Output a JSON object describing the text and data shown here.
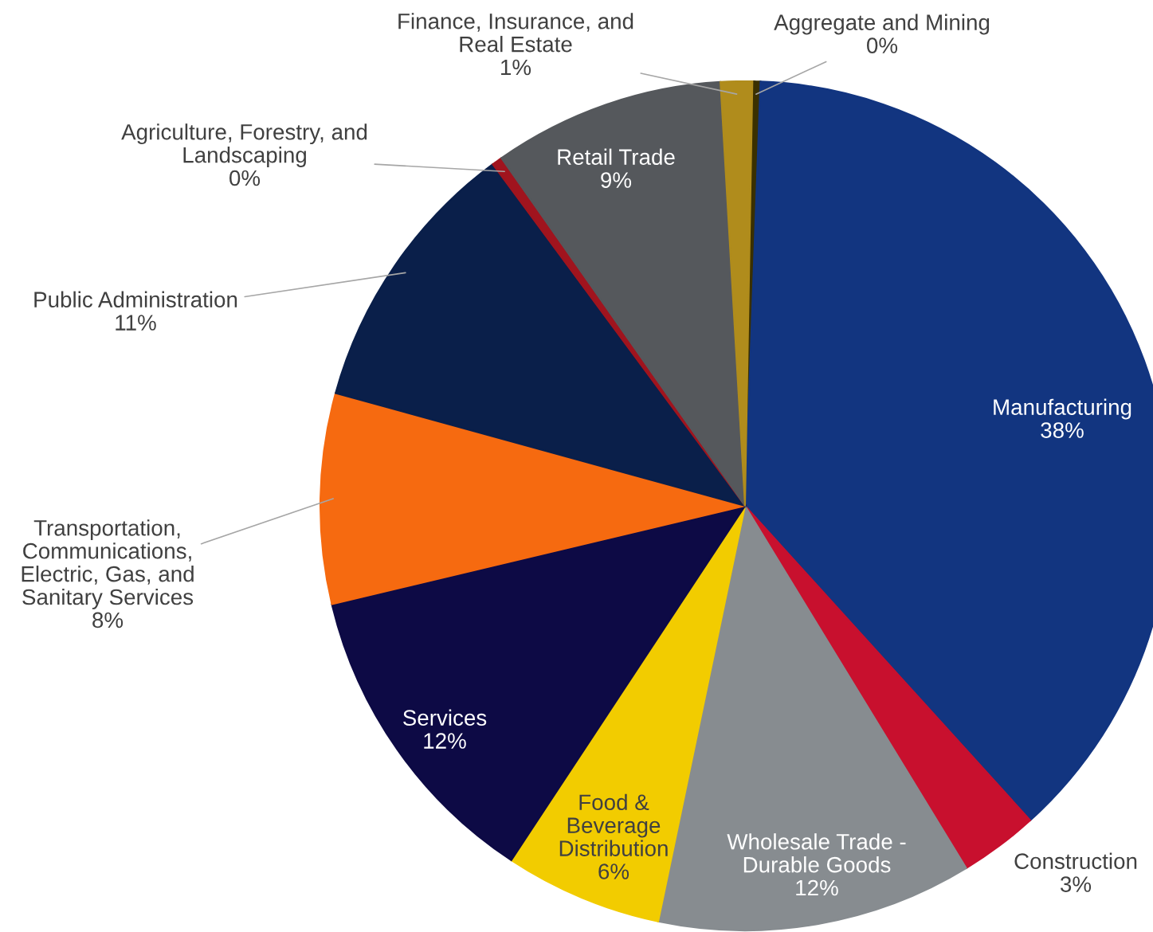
{
  "chart_data": {
    "type": "pie",
    "categories": [
      "Aggregate and Mining",
      "Manufacturing",
      "Construction",
      "Wholesale Trade -\nDurable Goods",
      "Food &\nBeverage\nDistribution",
      "Services",
      "Transportation,\nCommunications,\nElectric, Gas, and\nSanitary Services",
      "Public Administration",
      "Agriculture, Forestry, and\nLandscaping",
      "Retail Trade",
      "Finance, Insurance, and\nReal Estate"
    ],
    "values": [
      0.3,
      37.7,
      3,
      12,
      6,
      12,
      8,
      10.6,
      0.4,
      8.8,
      1.2
    ],
    "value_labels": [
      "0%",
      "38%",
      "3%",
      "12%",
      "6%",
      "12%",
      "8%",
      "11%",
      "0%",
      "9%",
      "1%"
    ],
    "colors": [
      "#3a3000",
      "#123580",
      "#c8102e",
      "#878c90",
      "#f2cc00",
      "#0d0a45",
      "#f66a10",
      "#0a1f4a",
      "#a0141e",
      "#55585c",
      "#b08c1c"
    ],
    "legend": false
  }
}
